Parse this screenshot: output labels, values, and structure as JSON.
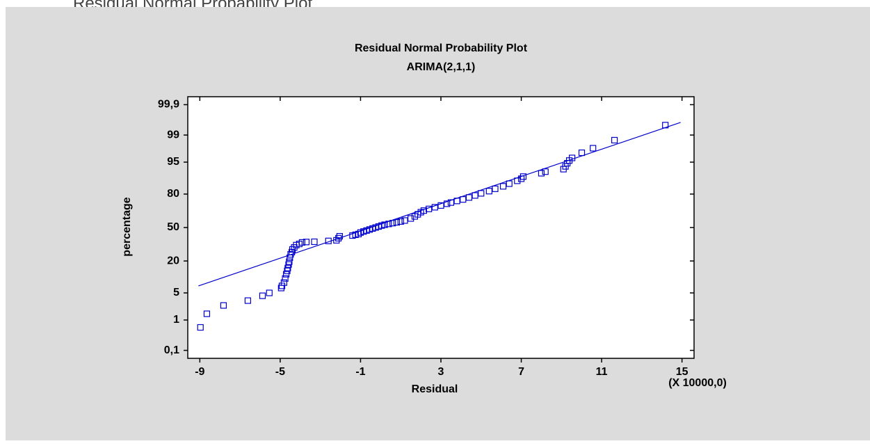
{
  "heading": "Residual Normal Probability Plot",
  "chart_data": {
    "type": "probability",
    "title": "Residual Normal Probability Plot",
    "subtitle": "ARIMA(2,1,1)",
    "x_label": "Residual",
    "y_label": "percentage",
    "x_annotation": "(X 10000,0)",
    "xlim": [
      -9.6,
      15.6
    ],
    "xticks": [
      -9,
      -5,
      -1,
      3,
      7,
      11,
      15
    ],
    "ylim": [
      0.05,
      99.95
    ],
    "yscale": "probability",
    "yticks": [
      {
        "value": 0.1,
        "label": "0,1"
      },
      1,
      5,
      20,
      50,
      80,
      95,
      99,
      {
        "value": 99.9,
        "label": "99,9"
      }
    ],
    "color": "#0000cc",
    "x": [
      -8.97,
      -8.65,
      -7.82,
      -6.61,
      -5.88,
      -5.54,
      -4.95,
      -4.91,
      -4.81,
      -4.75,
      -4.7,
      -4.65,
      -4.62,
      -4.58,
      -4.55,
      -4.52,
      -4.48,
      -4.42,
      -4.39,
      -4.3,
      -4.2,
      -4.05,
      -3.91,
      -3.7,
      -3.3,
      -2.6,
      -2.2,
      -2.1,
      -2.04,
      -1.4,
      -1.25,
      -1.1,
      -1.0,
      -0.85,
      -0.7,
      -0.55,
      -0.4,
      -0.25,
      -0.1,
      0.05,
      0.2,
      0.4,
      0.6,
      0.8,
      1.0,
      1.2,
      1.5,
      1.7,
      1.85,
      2.0,
      2.15,
      2.4,
      2.7,
      3.0,
      3.3,
      3.5,
      3.8,
      4.1,
      4.4,
      4.7,
      5.0,
      5.4,
      5.7,
      6.1,
      6.4,
      6.8,
      7.0,
      7.1,
      8.0,
      8.2,
      9.1,
      9.2,
      9.29,
      9.39,
      9.53,
      10.01,
      10.57,
      11.64,
      14.17
    ],
    "values": [
      0.6,
      1.5,
      2.5,
      3.3,
      4.3,
      5.0,
      6.4,
      7.1,
      8.3,
      10,
      12,
      13.8,
      15.4,
      17.6,
      19.5,
      22.4,
      25,
      26.8,
      29.1,
      30.8,
      32.9,
      34,
      35.4,
      35.8,
      36,
      36.8,
      37.4,
      39.4,
      41.3,
      42,
      42.8,
      43.5,
      45,
      46,
      47,
      48,
      49,
      50,
      51,
      52,
      52.8,
      53.6,
      54.4,
      55.2,
      56,
      57,
      59,
      61,
      63,
      65,
      66.5,
      68,
      69.5,
      71,
      72.5,
      73.5,
      74.8,
      76,
      77.5,
      79,
      80.5,
      82,
      83.5,
      85,
      86.5,
      88,
      89,
      90,
      91.4,
      92,
      92.9,
      93.8,
      94.7,
      95.4,
      96,
      97,
      97.7,
      98.6,
      99.5
    ],
    "fit": {
      "x": [
        -9.07,
        14.93
      ],
      "values": [
        7.1,
        99.59
      ]
    }
  }
}
